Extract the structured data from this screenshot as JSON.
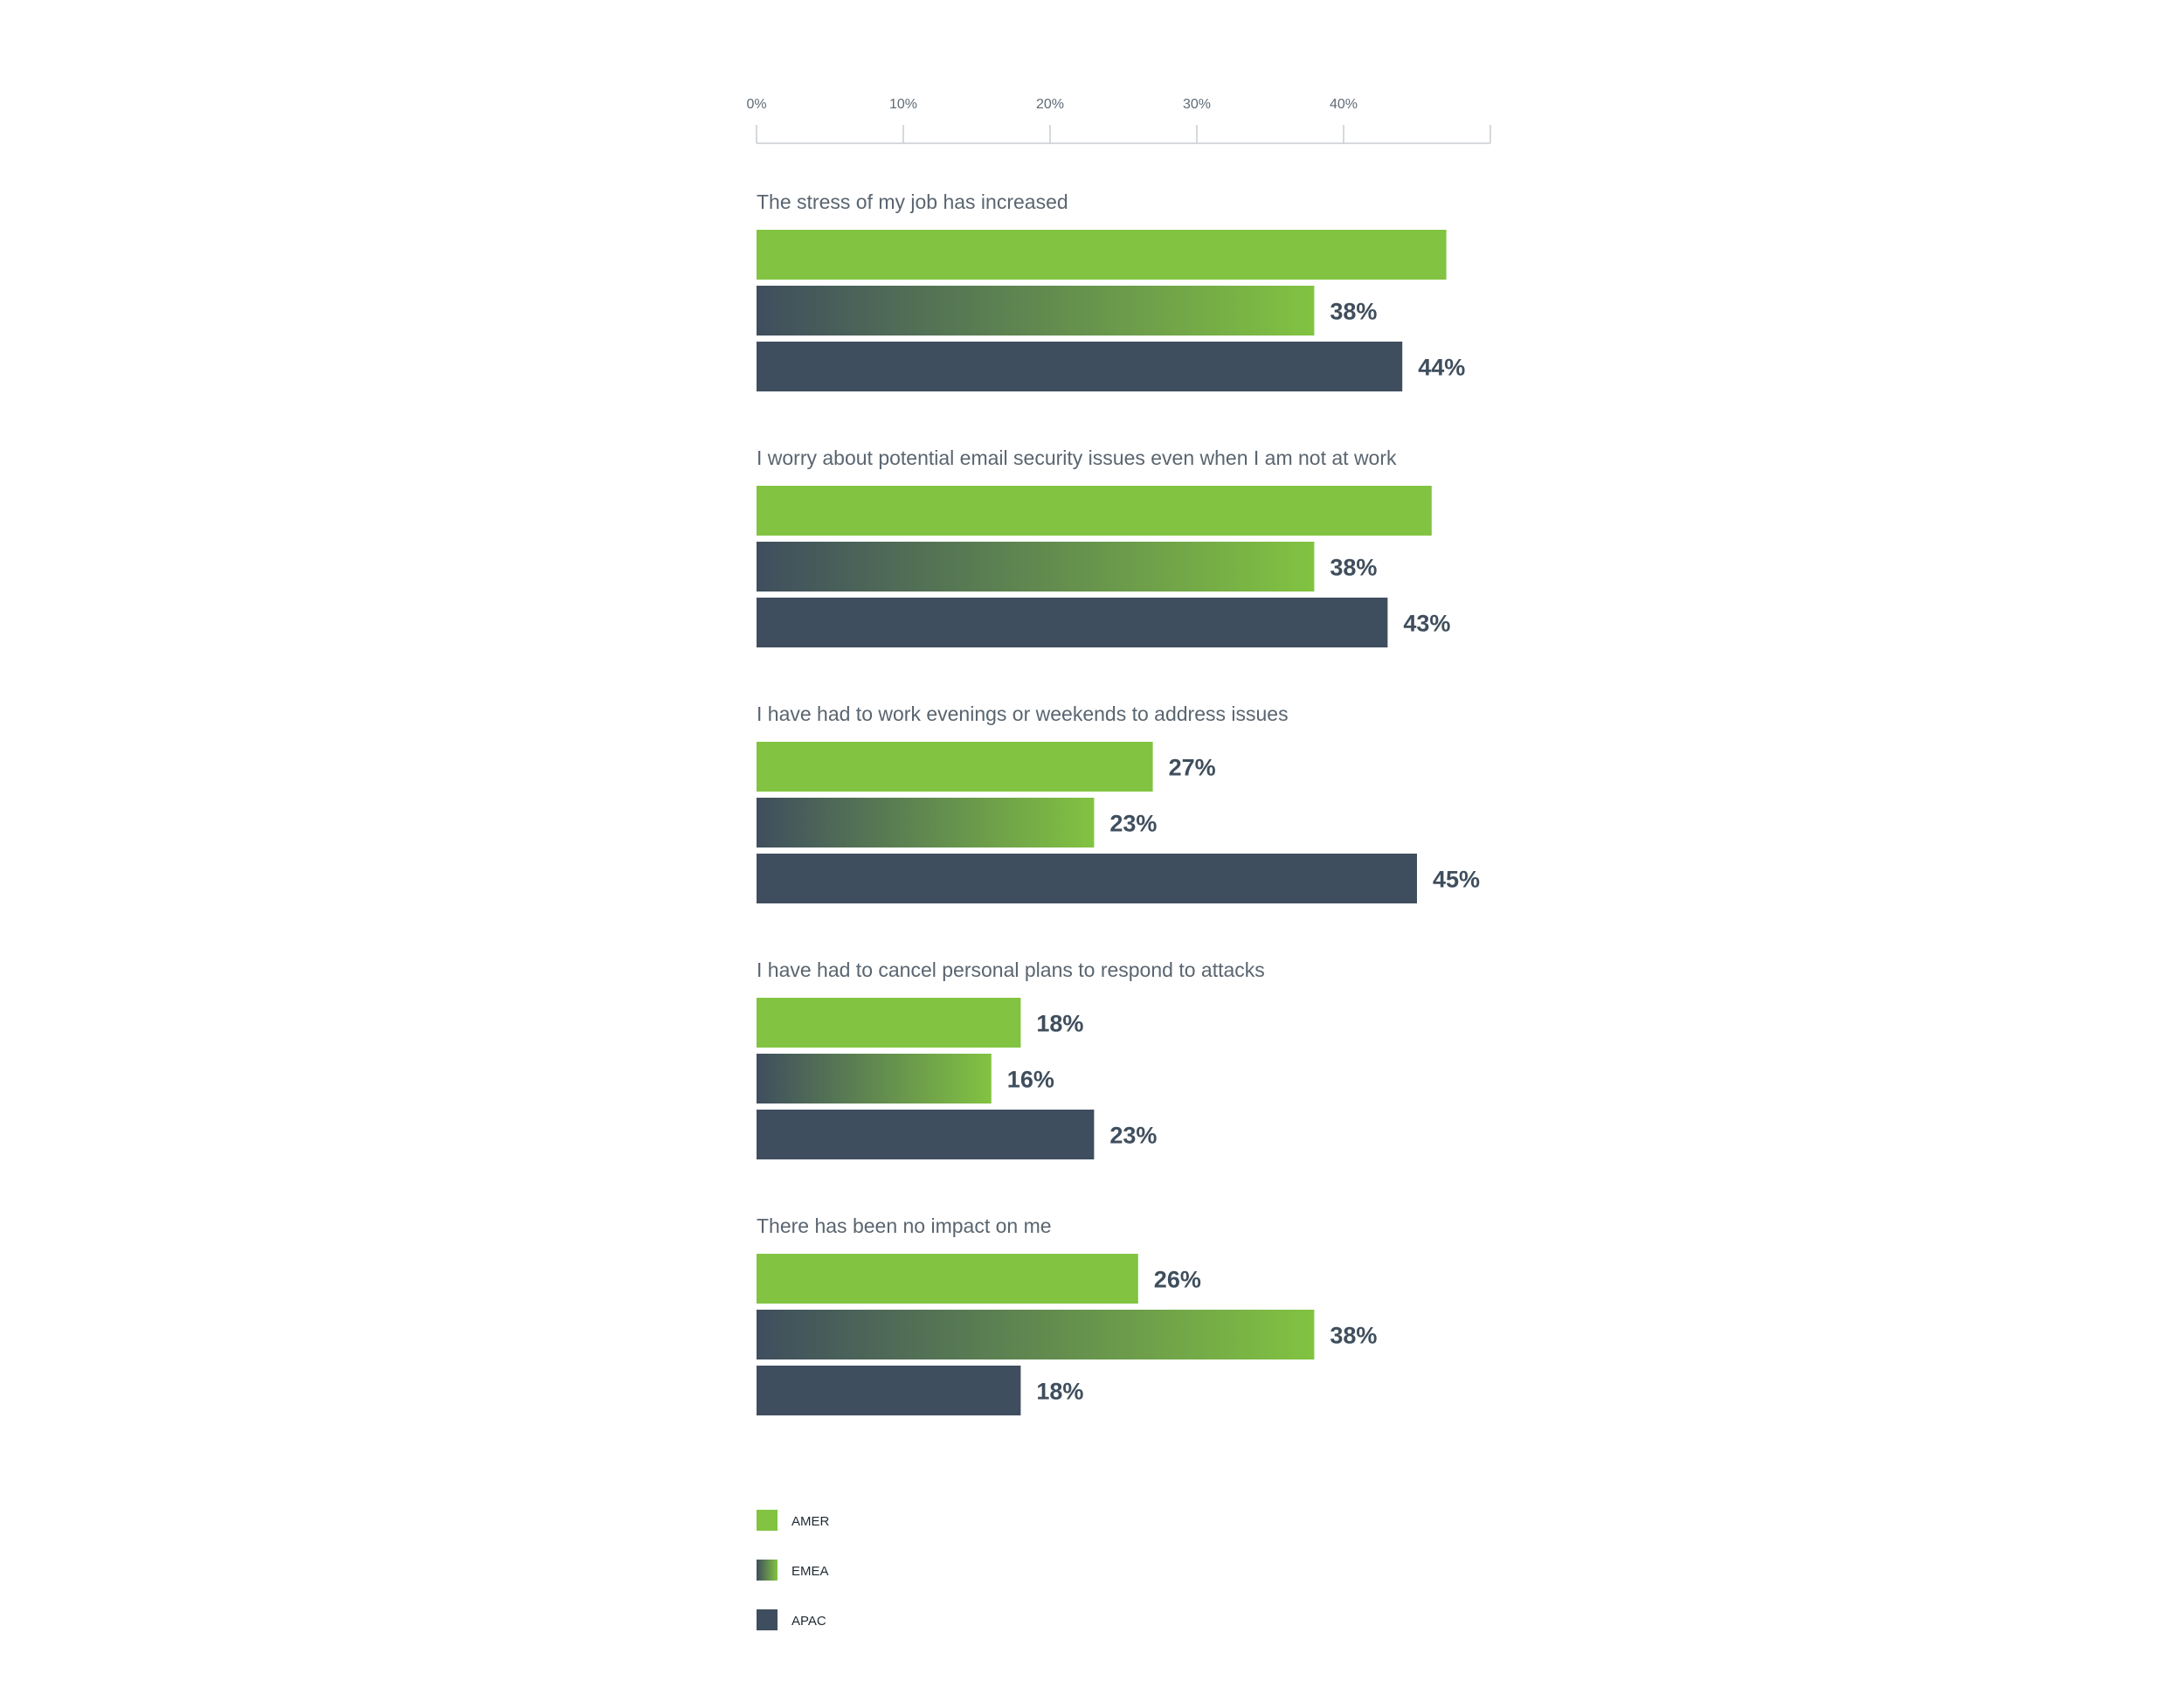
{
  "chart_data": {
    "type": "bar",
    "orientation": "horizontal",
    "axis": {
      "ticks": [
        "0%",
        "10%",
        "20%",
        "30%",
        "40%"
      ],
      "tick_values": [
        0,
        10,
        20,
        30,
        40
      ],
      "xlim": [
        0,
        50
      ],
      "unit": "%"
    },
    "categories": [
      "The stress of my job has increased",
      "I worry about potential email security issues even when I am not at work",
      "I have had to work evenings or weekends to address issues",
      "I have had to cancel personal plans to respond to attacks",
      "There has been no impact on me"
    ],
    "series": [
      {
        "name": "AMER",
        "fill": "solid",
        "color": "#82c341",
        "values": [
          47,
          46,
          27,
          18,
          26
        ],
        "labels": [
          "",
          "",
          "27%",
          "18%",
          "26%"
        ]
      },
      {
        "name": "EMEA",
        "fill": "gradient",
        "color": "#82c341",
        "gradient_from": "#3f4e5e",
        "gradient_to": "#82c341",
        "values": [
          38,
          38,
          23,
          16,
          38
        ],
        "labels": [
          "38%",
          "38%",
          "23%",
          "16%",
          "38%"
        ]
      },
      {
        "name": "APAC",
        "fill": "solid",
        "color": "#3f4e5e",
        "values": [
          44,
          43,
          45,
          23,
          18
        ],
        "labels": [
          "44%",
          "43%",
          "45%",
          "23%",
          "18%"
        ]
      }
    ],
    "legend": {
      "placement": "bottom-left",
      "entries": [
        "AMER",
        "EMEA",
        "APAC"
      ]
    },
    "grid": false,
    "colors": {
      "amer": "#82c341",
      "apac": "#3f4e5e",
      "text": "#5a6570",
      "value_text": "#3f4e5d",
      "axis": "#c8ccd0"
    }
  }
}
